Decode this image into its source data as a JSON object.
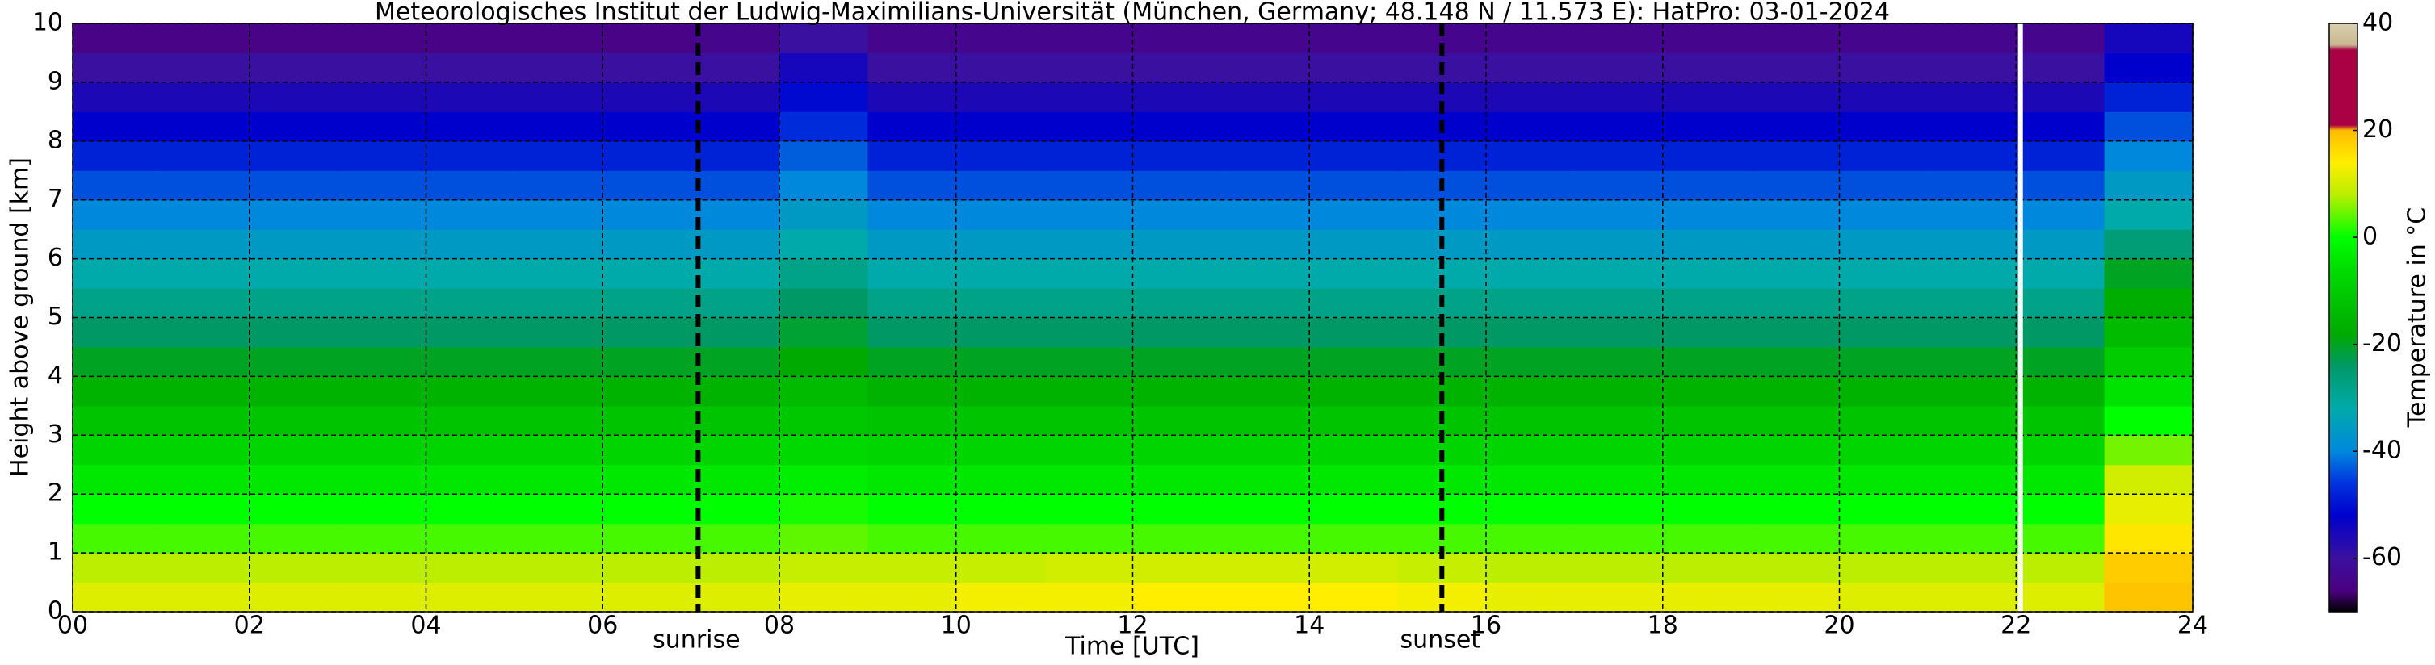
{
  "chart_data": {
    "type": "heatmap",
    "title": "Meteorologisches Institut der Ludwig-Maximilians-Universität (München, Germany; 48.148 N / 11.573 E):    HatPro: 03-01-2024",
    "xlabel": "Time [UTC]",
    "ylabel": "Height above ground [km]",
    "colorbar_label": "Temperature in °C",
    "xlim": [
      0,
      24
    ],
    "ylim": [
      0,
      10
    ],
    "xticks": [
      {
        "value": 0,
        "label": "00"
      },
      {
        "value": 2,
        "label": "02"
      },
      {
        "value": 4,
        "label": "04"
      },
      {
        "value": 6,
        "label": "06"
      },
      {
        "value": 8,
        "label": "08"
      },
      10,
      12,
      14,
      16,
      18,
      20,
      22,
      24
    ],
    "yticks": [
      0,
      1,
      2,
      3,
      4,
      5,
      6,
      7,
      8,
      9,
      10
    ],
    "grid": true,
    "clim": [
      -70,
      40
    ],
    "cticks": [
      -60,
      -40,
      -20,
      0,
      20,
      40
    ],
    "colorscale": [
      {
        "value": -70,
        "color": "#000000"
      },
      {
        "value": -66,
        "color": "#4b0082"
      },
      {
        "value": -60,
        "color": "#3a10a0"
      },
      {
        "value": -52,
        "color": "#0000cc"
      },
      {
        "value": -46,
        "color": "#0033dd"
      },
      {
        "value": -40,
        "color": "#0088dd"
      },
      {
        "value": -32,
        "color": "#00aaaa"
      },
      {
        "value": -24,
        "color": "#009966"
      },
      {
        "value": -18,
        "color": "#00aa00"
      },
      {
        "value": -6,
        "color": "#00dd00"
      },
      {
        "value": 0,
        "color": "#00ff00"
      },
      {
        "value": 8,
        "color": "#bbee00"
      },
      {
        "value": 14,
        "color": "#ffee00"
      },
      {
        "value": 20,
        "color": "#ffbb00"
      },
      {
        "value": 21,
        "color": "#aa0044"
      },
      {
        "value": 35,
        "color": "#aa0044"
      },
      {
        "value": 36,
        "color": "#c8b890"
      },
      {
        "value": 40,
        "color": "#d8d0b0"
      }
    ],
    "x_edges": [
      0,
      1,
      2,
      3,
      4,
      5,
      6,
      7,
      8,
      9,
      10,
      11,
      12,
      13,
      14,
      15,
      16,
      17,
      18,
      19,
      20,
      21,
      22,
      23,
      24
    ],
    "y_edges": [
      0,
      0.5,
      1,
      1.5,
      2,
      2.5,
      3,
      3.5,
      4,
      4.5,
      5,
      5.5,
      6,
      6.5,
      7,
      7.5,
      8,
      8.5,
      9,
      9.5,
      10
    ],
    "z": [
      [
        11,
        11,
        11,
        11,
        11,
        11,
        11,
        11,
        12,
        12,
        13,
        13,
        14,
        14,
        14,
        13,
        12,
        12,
        12,
        12,
        11,
        11,
        11,
        19
      ],
      [
        8,
        8,
        8,
        8,
        8,
        8,
        8,
        8,
        9,
        9,
        9,
        10,
        10,
        10,
        10,
        9,
        8,
        8,
        8,
        8,
        8,
        8,
        8,
        18
      ],
      [
        3,
        3,
        3,
        3,
        3,
        3,
        3,
        3,
        4,
        3,
        3,
        3,
        3,
        3,
        3,
        3,
        3,
        3,
        3,
        3,
        3,
        3,
        3,
        15
      ],
      [
        0,
        0,
        0,
        0,
        0,
        0,
        0,
        0,
        1,
        0,
        0,
        0,
        0,
        0,
        0,
        0,
        0,
        0,
        0,
        0,
        0,
        0,
        0,
        12
      ],
      [
        -4,
        -4,
        -4,
        -4,
        -4,
        -4,
        -4,
        -4,
        -3,
        -4,
        -4,
        -4,
        -4,
        -4,
        -4,
        -4,
        -4,
        -4,
        -4,
        -4,
        -4,
        -4,
        -4,
        10
      ],
      [
        -8,
        -8,
        -8,
        -8,
        -8,
        -8,
        -8,
        -8,
        -7,
        -8,
        -8,
        -8,
        -8,
        -8,
        -8,
        -8,
        -8,
        -8,
        -8,
        -8,
        -8,
        -8,
        -8,
        5
      ],
      [
        -12,
        -12,
        -12,
        -12,
        -12,
        -12,
        -12,
        -12,
        -11,
        -12,
        -12,
        -12,
        -12,
        -12,
        -12,
        -12,
        -12,
        -12,
        -12,
        -12,
        -12,
        -12,
        -12,
        0
      ],
      [
        -16,
        -16,
        -16,
        -16,
        -16,
        -16,
        -16,
        -16,
        -14,
        -16,
        -16,
        -16,
        -16,
        -16,
        -16,
        -16,
        -16,
        -16,
        -16,
        -16,
        -16,
        -16,
        -16,
        -5
      ],
      [
        -20,
        -20,
        -20,
        -20,
        -20,
        -20,
        -20,
        -20,
        -18,
        -20,
        -20,
        -20,
        -20,
        -20,
        -20,
        -20,
        -20,
        -20,
        -20,
        -20,
        -20,
        -20,
        -20,
        -10
      ],
      [
        -24,
        -24,
        -24,
        -24,
        -24,
        -24,
        -24,
        -24,
        -21,
        -24,
        -24,
        -24,
        -24,
        -24,
        -24,
        -24,
        -24,
        -24,
        -24,
        -24,
        -24,
        -24,
        -24,
        -14
      ],
      [
        -28,
        -28,
        -28,
        -28,
        -28,
        -28,
        -28,
        -28,
        -24,
        -28,
        -28,
        -28,
        -28,
        -28,
        -28,
        -28,
        -28,
        -28,
        -28,
        -28,
        -28,
        -28,
        -28,
        -17
      ],
      [
        -32,
        -32,
        -32,
        -32,
        -32,
        -32,
        -32,
        -32,
        -28,
        -32,
        -32,
        -32,
        -32,
        -32,
        -32,
        -32,
        -32,
        -32,
        -32,
        -32,
        -32,
        -32,
        -32,
        -20
      ],
      [
        -36,
        -36,
        -36,
        -36,
        -36,
        -36,
        -36,
        -36,
        -32,
        -36,
        -36,
        -36,
        -36,
        -36,
        -36,
        -36,
        -36,
        -36,
        -36,
        -36,
        -36,
        -36,
        -36,
        -26
      ],
      [
        -40,
        -40,
        -40,
        -40,
        -40,
        -40,
        -40,
        -40,
        -36,
        -40,
        -40,
        -40,
        -40,
        -40,
        -40,
        -40,
        -40,
        -40,
        -40,
        -40,
        -40,
        -40,
        -40,
        -32
      ],
      [
        -44,
        -44,
        -44,
        -44,
        -44,
        -44,
        -44,
        -44,
        -40,
        -44,
        -44,
        -44,
        -44,
        -44,
        -44,
        -44,
        -44,
        -44,
        -44,
        -44,
        -44,
        -44,
        -44,
        -36
      ],
      [
        -48,
        -48,
        -48,
        -48,
        -48,
        -48,
        -48,
        -48,
        -43,
        -48,
        -48,
        -48,
        -48,
        -48,
        -48,
        -48,
        -48,
        -48,
        -48,
        -48,
        -48,
        -48,
        -48,
        -40
      ],
      [
        -52,
        -52,
        -52,
        -52,
        -52,
        -52,
        -52,
        -52,
        -47,
        -52,
        -52,
        -52,
        -52,
        -52,
        -52,
        -52,
        -52,
        -52,
        -52,
        -52,
        -52,
        -52,
        -52,
        -44
      ],
      [
        -56,
        -56,
        -56,
        -56,
        -56,
        -56,
        -56,
        -56,
        -51,
        -56,
        -56,
        -56,
        -56,
        -56,
        -56,
        -56,
        -56,
        -56,
        -56,
        -56,
        -56,
        -56,
        -56,
        -48
      ],
      [
        -60,
        -60,
        -60,
        -60,
        -60,
        -60,
        -60,
        -60,
        -55,
        -60,
        -60,
        -60,
        -60,
        -60,
        -60,
        -60,
        -60,
        -60,
        -60,
        -60,
        -60,
        -60,
        -60,
        -52
      ],
      [
        -65,
        -65,
        -65,
        -65,
        -65,
        -65,
        -65,
        -64,
        -60,
        -64,
        -64,
        -64,
        -64,
        -64,
        -64,
        -64,
        -64,
        -64,
        -64,
        -64,
        -64,
        -64,
        -64,
        -55
      ]
    ],
    "vlines": [
      {
        "x": 7.08,
        "label": "sunrise",
        "color": "#000000",
        "style": "dashed"
      },
      {
        "x": 15.5,
        "label": "sunset",
        "color": "#000000",
        "style": "dashed"
      },
      {
        "x": 22.05,
        "color": "#ffffff",
        "style": "solid"
      }
    ]
  }
}
